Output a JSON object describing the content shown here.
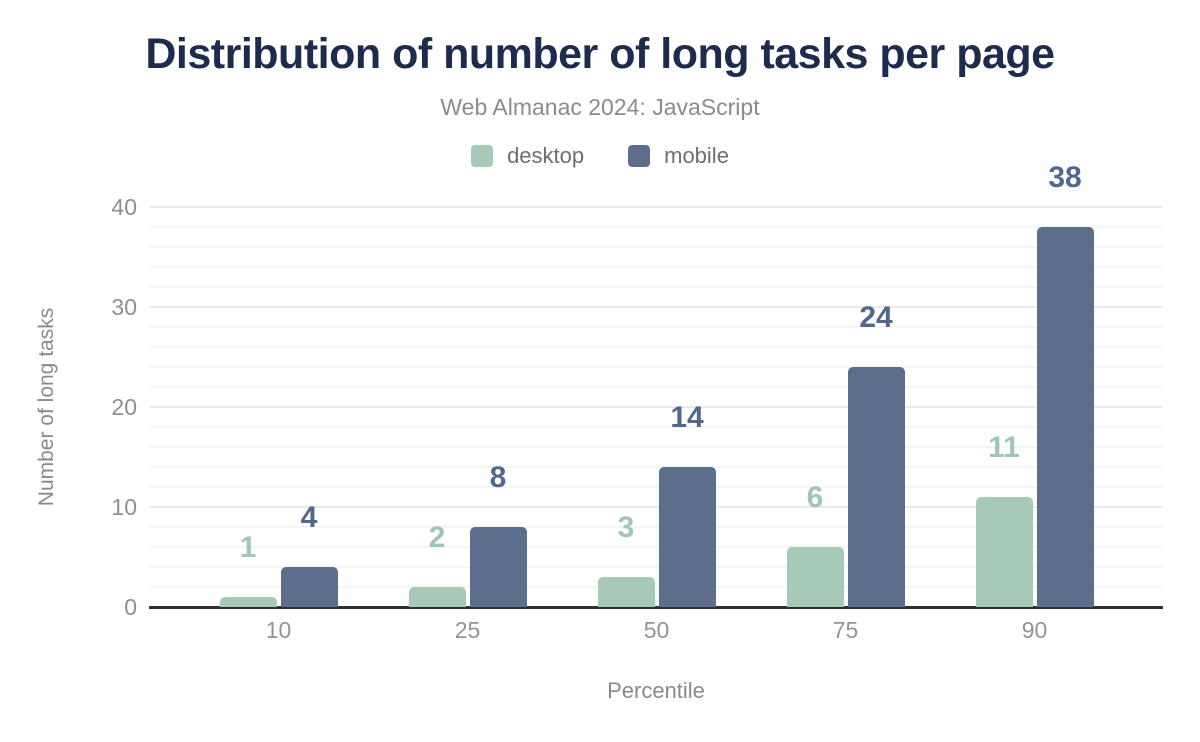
{
  "header": {
    "title": "Distribution of number of long tasks per page",
    "subtitle": "Web Almanac 2024: JavaScript"
  },
  "colors": {
    "title_navy": "#1d2b4c",
    "desktop_green": "#a6cab7",
    "desktop_label_green": "#9fc6b1",
    "mobile_slate": "#5d6e8c",
    "mobile_label_slate": "#52678c",
    "axis_line": "#2f2f2f",
    "gridline_minor": "#f5f5f5",
    "gridline_major": "#eaeaea",
    "tick_text": "#8f8f8f",
    "muted_text": "#8a8a8a"
  },
  "chart_data": {
    "type": "bar",
    "title": "Distribution of number of long tasks per page",
    "subtitle": "Web Almanac 2024: JavaScript",
    "categories": [
      "10",
      "25",
      "50",
      "75",
      "90"
    ],
    "series": [
      {
        "name": "desktop",
        "color": "#a6cab7",
        "label_color": "#9fc6b1",
        "values": [
          1,
          2,
          3,
          6,
          11
        ]
      },
      {
        "name": "mobile",
        "color": "#5d6e8c",
        "label_color": "#52678c",
        "values": [
          4,
          8,
          14,
          24,
          38
        ]
      }
    ],
    "xlabel": "Percentile",
    "ylabel": "Number of long tasks",
    "ylim": [
      0,
      40
    ],
    "yticks": [
      0,
      10,
      20,
      30,
      40
    ],
    "grid": "horizontal minor lines every 2 units, major every 10",
    "legend_position": "top center",
    "value_labels": "above each bar, colored like its series"
  }
}
